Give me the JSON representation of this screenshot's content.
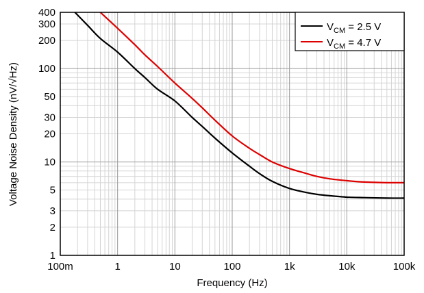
{
  "chart_data": {
    "type": "line",
    "title": "",
    "xlabel": "Frequency (Hz)",
    "ylabel": "Voltage Noise Density (nV/√Hz)",
    "xscale": "log",
    "yscale": "log",
    "xlim": [
      0.1,
      100000
    ],
    "ylim": [
      1,
      400
    ],
    "grid": true,
    "legend": "top-right",
    "x_ticks": [
      0.1,
      1,
      10,
      100,
      1000,
      10000,
      100000
    ],
    "x_tick_labels": [
      "100m",
      "1",
      "10",
      "100",
      "1k",
      "10k",
      "100k"
    ],
    "y_ticks": [
      1,
      2,
      3,
      5,
      10,
      20,
      30,
      50,
      100,
      200,
      300,
      400
    ],
    "y_tick_labels": [
      "1",
      "2",
      "3",
      "5",
      "10",
      "20",
      "30",
      "50",
      "100",
      "200",
      "300",
      "400"
    ],
    "series": [
      {
        "name": "V_CM = 2.5 V",
        "legend_main": "V",
        "legend_sub": "CM",
        "legend_rest": " = 2.5 V",
        "color": "#000000",
        "x": [
          0.18,
          0.3,
          0.5,
          1,
          2,
          3,
          5,
          10,
          20,
          30,
          50,
          100,
          200,
          300,
          500,
          1000,
          2000,
          3000,
          5000,
          10000,
          20000,
          50000,
          100000
        ],
        "y": [
          400,
          290,
          210,
          150,
          100,
          80,
          60,
          45,
          30,
          24,
          18,
          12.5,
          9,
          7.5,
          6.2,
          5.2,
          4.7,
          4.5,
          4.35,
          4.2,
          4.15,
          4.1,
          4.1
        ]
      },
      {
        "name": "V_CM = 4.7 V",
        "legend_main": "V",
        "legend_sub": "CM",
        "legend_rest": " = 4.7 V",
        "color": "#dd0000",
        "x": [
          0.5,
          1,
          2,
          3,
          5,
          10,
          20,
          30,
          50,
          100,
          200,
          300,
          500,
          1000,
          2000,
          3000,
          5000,
          10000,
          20000,
          50000,
          100000
        ],
        "y": [
          400,
          270,
          180,
          140,
          105,
          70,
          48,
          38,
          28,
          19,
          14,
          12,
          10,
          8.5,
          7.5,
          7,
          6.6,
          6.3,
          6.1,
          6.0,
          6.0
        ]
      }
    ]
  }
}
